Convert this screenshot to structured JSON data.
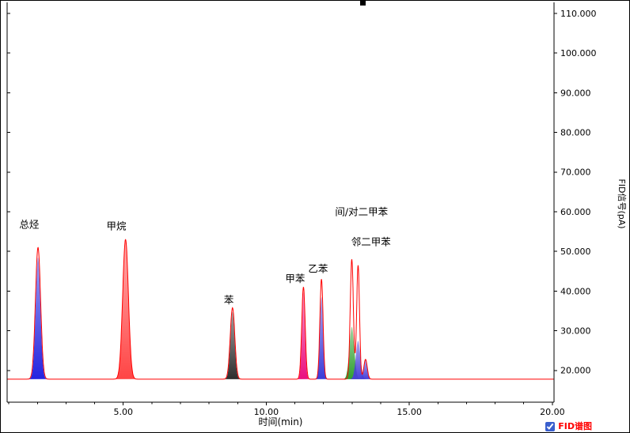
{
  "legend": {
    "label": "FID谱图",
    "color": "#ff0000",
    "checked": true
  },
  "chart_data": {
    "type": "line",
    "title": "",
    "xlabel": "时间(min)",
    "ylabel": "FID信号(pA)",
    "xlim": [
      0.94,
      20.06
    ],
    "ylim": [
      12,
      112
    ],
    "x_major_ticks": [
      5,
      10,
      15,
      20
    ],
    "x_major_tick_labels": [
      "5.00",
      "10.00",
      "15.00",
      "20.00"
    ],
    "x_minor_tick_interval": 1,
    "y_ticks": [
      20,
      30,
      40,
      50,
      60,
      70,
      80,
      90,
      100,
      110
    ],
    "y_tick_labels": [
      "20.000",
      "30.000",
      "40.000",
      "50.000",
      "60.000",
      "70.000",
      "80.000",
      "90.000",
      "100.000",
      "110.000"
    ],
    "grid": false,
    "legend_position": "bottom-right",
    "baseline_pa": 17.8,
    "trace_color": "#ff0000",
    "axis_color": "#000000",
    "peaks": [
      {
        "name": "总烃",
        "time_min": 2.02,
        "apex_pa": 51.0,
        "sigma_min": 0.09,
        "fill_apex_pa": 48.5,
        "fill_sigma_min": 0.085,
        "fill_color": "#2424e0"
      },
      {
        "name": "甲烷",
        "time_min": 5.08,
        "apex_pa": 53.0,
        "sigma_min": 0.1,
        "fill_apex_pa": 52.5,
        "fill_sigma_min": 0.1,
        "fill_color": "#ff4545"
      },
      {
        "name": "苯",
        "time_min": 8.82,
        "apex_pa": 35.8,
        "sigma_min": 0.08,
        "fill_apex_pa": 34.8,
        "fill_sigma_min": 0.075,
        "fill_color": "#2e2e2e"
      },
      {
        "name": "甲苯",
        "time_min": 11.3,
        "apex_pa": 41.0,
        "sigma_min": 0.06,
        "fill_apex_pa": 39.8,
        "fill_sigma_min": 0.055,
        "fill_color": "#ea1080"
      },
      {
        "name": "乙苯",
        "time_min": 11.93,
        "apex_pa": 43.0,
        "sigma_min": 0.055,
        "fill_apex_pa": 38.5,
        "fill_sigma_min": 0.06,
        "fill_color": "#3c3cd8"
      },
      {
        "name": "间/对二甲苯",
        "time_min": 12.99,
        "apex_pa": 48.0,
        "sigma_min": 0.055,
        "fill_apex_pa": 31.0,
        "fill_sigma_min": 0.085,
        "fill_color": "#2fa02f"
      },
      {
        "name": "邻二甲苯",
        "time_min": 13.21,
        "apex_pa": 46.5,
        "sigma_min": 0.05,
        "fill_apex_pa": 27.5,
        "fill_sigma_min": 0.08,
        "fill_color": "#4840d8"
      },
      {
        "name": "",
        "time_min": 13.47,
        "apex_pa": 22.8,
        "sigma_min": 0.06,
        "fill_apex_pa": 22.8,
        "fill_sigma_min": 0.06,
        "fill_color": "#4840d8"
      }
    ],
    "peak_labels": [
      {
        "text": "总烃",
        "t": 1.71,
        "pa": 56.8
      },
      {
        "text": "甲烷",
        "t": 4.76,
        "pa": 56.4
      },
      {
        "text": "苯",
        "t": 8.69,
        "pa": 37.8
      },
      {
        "text": "甲苯",
        "t": 11.01,
        "pa": 43.2
      },
      {
        "text": "乙苯",
        "t": 11.81,
        "pa": 45.6
      },
      {
        "text": "间/对二甲苯",
        "t": 13.33,
        "pa": 60.0
      },
      {
        "text": "邻二甲苯",
        "t": 13.66,
        "pa": 52.4
      }
    ]
  }
}
